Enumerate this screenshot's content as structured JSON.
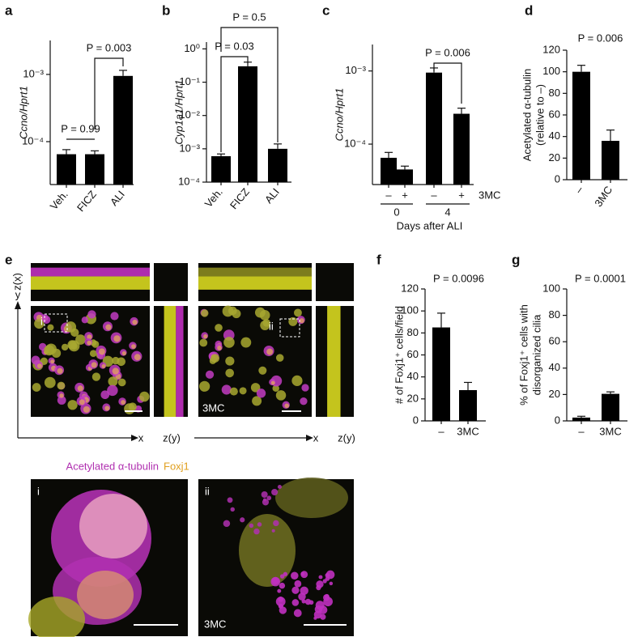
{
  "chart_data": [
    {
      "type": "bar",
      "panel": "a",
      "y_label": [
        "Ccno/Hprt1"
      ],
      "log_scale": true,
      "categories": [
        "Veh.",
        "FICZ",
        "ALI"
      ],
      "values": [
        6.5e-05,
        6.5e-05,
        0.00095
      ],
      "errors": [
        1.1e-05,
        8e-06,
        0.0002
      ],
      "color": "#000000",
      "ylim": [
        2.3e-05,
        0.0032
      ],
      "yticks": [
        {
          "value": 0.0001,
          "label": "10⁻⁴"
        },
        {
          "value": 0.001,
          "label": "10⁻³"
        }
      ],
      "annotations": [
        "P = 0.99",
        "P = 0.003"
      ]
    },
    {
      "type": "bar",
      "panel": "b",
      "y_label": [
        "Cyp1a1/Hprt1"
      ],
      "log_scale": true,
      "categories": [
        "Veh.",
        "FICZ",
        "ALI"
      ],
      "values": [
        0.0006,
        0.3,
        0.001
      ],
      "errors": [
        0.0001,
        0.1,
        0.0004
      ],
      "color": "#000000",
      "ylim": [
        0.0001,
        1.6
      ],
      "yticks": [
        {
          "value": 0.0001,
          "label": "10⁻⁴"
        },
        {
          "value": 0.001,
          "label": "10⁻³"
        },
        {
          "value": 0.01,
          "label": "10⁻²"
        },
        {
          "value": 0.1,
          "label": "10⁻¹"
        },
        {
          "value": 1,
          "label": "10⁰"
        }
      ],
      "annotations": [
        "P = 0.03",
        "P = 0.5"
      ]
    },
    {
      "type": "bar",
      "panel": "c",
      "y_label": [
        "Ccno/Hprt1"
      ],
      "log_scale": true,
      "categories": [
        "–",
        "+",
        "–",
        "+"
      ],
      "groups": [
        "0",
        "4"
      ],
      "treatment_label": "3MC",
      "x_label": "Days after ALI",
      "values": [
        6.5e-05,
        4.5e-05,
        0.00095,
        0.00026
      ],
      "errors": [
        1.2e-05,
        5e-06,
        0.00015,
        5e-05
      ],
      "color": "#000000",
      "ylim": [
        2.8e-05,
        0.0023
      ],
      "yticks": [
        {
          "value": 0.0001,
          "label": "10⁻⁴"
        },
        {
          "value": 0.001,
          "label": "10⁻³"
        }
      ],
      "annotations": [
        "P = 0.006"
      ]
    },
    {
      "type": "bar",
      "panel": "d",
      "y_label": [
        "Acetylated α-tubulin",
        "(relative to –)"
      ],
      "log_scale": false,
      "categories": [
        "–",
        "3MC"
      ],
      "values": [
        100,
        36
      ],
      "errors": [
        6,
        10
      ],
      "color": "#000000",
      "ylim": [
        0,
        120
      ],
      "yticks": [
        0,
        20,
        40,
        60,
        80,
        100,
        120
      ],
      "annotations": [
        "P = 0.006"
      ]
    },
    {
      "type": "bar",
      "panel": "f",
      "y_label": [
        "# of Foxj1⁺ cells/field"
      ],
      "log_scale": false,
      "categories": [
        "–",
        "3MC"
      ],
      "values": [
        85,
        28
      ],
      "errors": [
        13,
        7
      ],
      "color": "#000000",
      "ylim": [
        0,
        120
      ],
      "yticks": [
        0,
        20,
        40,
        60,
        80,
        100,
        120
      ],
      "annotations": [
        "P = 0.0096"
      ]
    },
    {
      "type": "bar",
      "panel": "g",
      "y_label": [
        "% of Foxj1⁺ cells with",
        "disorganized cilia"
      ],
      "log_scale": false,
      "categories": [
        "–",
        "3MC"
      ],
      "values": [
        2.5,
        20.5
      ],
      "errors": [
        1,
        1.5
      ],
      "color": "#000000",
      "ylim": [
        0,
        100
      ],
      "yticks": [
        0,
        20,
        40,
        60,
        80,
        100
      ],
      "annotations": [
        "P = 0.0001"
      ]
    }
  ],
  "panel_e": {
    "panel": "e",
    "zx": "z(x)",
    "y": "y",
    "x": "x",
    "zy": "z(y)",
    "inset_1": "i",
    "inset_2": "ii",
    "treatment": "3MC",
    "legend": [
      "Acetylated α-tubulin",
      "Foxj1"
    ]
  }
}
